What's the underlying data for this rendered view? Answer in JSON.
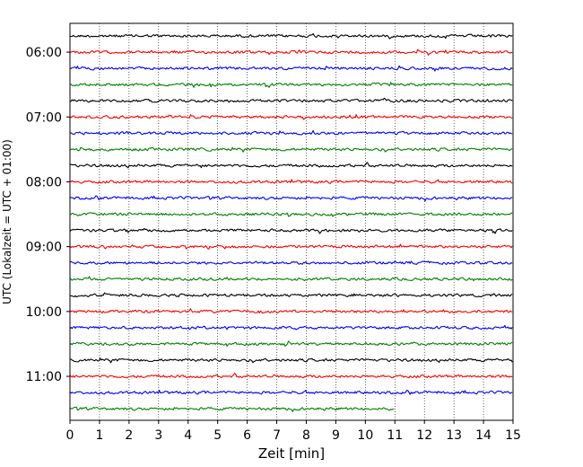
{
  "chart_data": {
    "type": "line",
    "title": "",
    "xlabel": "Zeit  [min]",
    "ylabel": "UTC (Lokalzeit = UTC + 01:00)",
    "xlim": [
      0,
      15
    ],
    "x_ticks": [
      0,
      1,
      2,
      3,
      4,
      5,
      6,
      7,
      8,
      9,
      10,
      11,
      12,
      13,
      14,
      15
    ],
    "y_tick_labels": [
      "06:00",
      "07:00",
      "08:00",
      "09:00",
      "10:00",
      "11:00"
    ],
    "grid": "vertical dotted",
    "colors": [
      "#000000",
      "#ff0000",
      "#0000ff",
      "#008000"
    ],
    "traces": [
      {
        "start": "05:45",
        "x_end": 15
      },
      {
        "start": "06:00",
        "x_end": 15
      },
      {
        "start": "06:15",
        "x_end": 15
      },
      {
        "start": "06:30",
        "x_end": 15
      },
      {
        "start": "06:45",
        "x_end": 15
      },
      {
        "start": "07:00",
        "x_end": 15
      },
      {
        "start": "07:15",
        "x_end": 15
      },
      {
        "start": "07:30",
        "x_end": 15
      },
      {
        "start": "07:45",
        "x_end": 15
      },
      {
        "start": "08:00",
        "x_end": 15
      },
      {
        "start": "08:15",
        "x_end": 15
      },
      {
        "start": "08:30",
        "x_end": 15
      },
      {
        "start": "08:45",
        "x_end": 15
      },
      {
        "start": "09:00",
        "x_end": 15
      },
      {
        "start": "09:15",
        "x_end": 15
      },
      {
        "start": "09:30",
        "x_end": 15
      },
      {
        "start": "09:45",
        "x_end": 15
      },
      {
        "start": "10:00",
        "x_end": 15
      },
      {
        "start": "10:15",
        "x_end": 15
      },
      {
        "start": "10:30",
        "x_end": 15
      },
      {
        "start": "10:45",
        "x_end": 15
      },
      {
        "start": "11:00",
        "x_end": 15
      },
      {
        "start": "11:15",
        "x_end": 15
      },
      {
        "start": "11:30",
        "x_end": 11
      }
    ]
  }
}
